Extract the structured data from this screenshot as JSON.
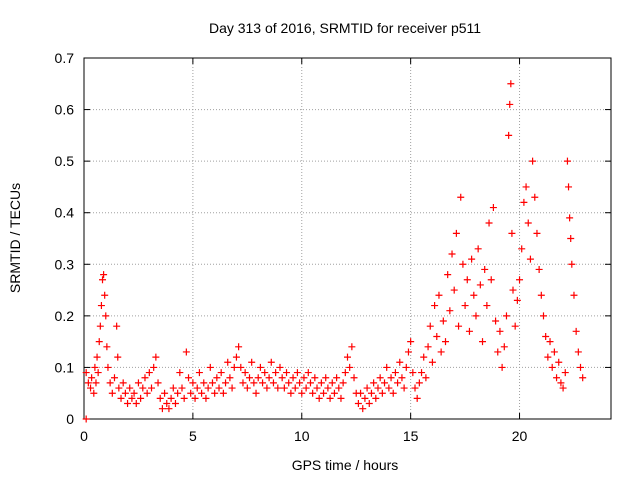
{
  "chart_data": {
    "type": "scatter",
    "title": "Day 313 of 2016, SRMTID for receiver p511",
    "xlabel": "GPS time / hours",
    "ylabel": "SRMTID / TECUs",
    "xlim": [
      0,
      24.2
    ],
    "ylim": [
      0,
      0.7
    ],
    "xticks": [
      0,
      5,
      10,
      15,
      20
    ],
    "xtick_labels": [
      "0",
      "5",
      "10",
      "15",
      "20"
    ],
    "yticks": [
      0,
      0.1,
      0.2,
      0.3,
      0.4,
      0.5,
      0.6,
      0.7
    ],
    "ytick_labels": [
      "0",
      "0.1",
      "0.2",
      "0.3",
      "0.4",
      "0.5",
      "0.6",
      "0.7"
    ],
    "grid": true,
    "marker": "+",
    "series": [
      {
        "name": "p511",
        "color": "#ff0000",
        "points": [
          [
            0.1,
            0.0
          ],
          [
            0.1,
            0.09
          ],
          [
            0.2,
            0.07
          ],
          [
            0.3,
            0.06
          ],
          [
            0.35,
            0.08
          ],
          [
            0.45,
            0.05
          ],
          [
            0.5,
            0.1
          ],
          [
            0.55,
            0.07
          ],
          [
            0.6,
            0.12
          ],
          [
            0.65,
            0.09
          ],
          [
            0.7,
            0.15
          ],
          [
            0.75,
            0.18
          ],
          [
            0.8,
            0.22
          ],
          [
            0.85,
            0.27
          ],
          [
            0.9,
            0.28
          ],
          [
            0.95,
            0.24
          ],
          [
            1.0,
            0.2
          ],
          [
            1.05,
            0.14
          ],
          [
            1.1,
            0.1
          ],
          [
            1.2,
            0.07
          ],
          [
            1.3,
            0.05
          ],
          [
            1.4,
            0.08
          ],
          [
            1.5,
            0.18
          ],
          [
            1.55,
            0.12
          ],
          [
            1.6,
            0.06
          ],
          [
            1.7,
            0.04
          ],
          [
            1.8,
            0.07
          ],
          [
            1.9,
            0.05
          ],
          [
            2.0,
            0.03
          ],
          [
            2.1,
            0.06
          ],
          [
            2.2,
            0.04
          ],
          [
            2.3,
            0.05
          ],
          [
            2.4,
            0.03
          ],
          [
            2.5,
            0.07
          ],
          [
            2.6,
            0.04
          ],
          [
            2.7,
            0.06
          ],
          [
            2.8,
            0.08
          ],
          [
            2.9,
            0.05
          ],
          [
            3.0,
            0.09
          ],
          [
            3.1,
            0.06
          ],
          [
            3.2,
            0.1
          ],
          [
            3.3,
            0.12
          ],
          [
            3.4,
            0.07
          ],
          [
            3.5,
            0.04
          ],
          [
            3.6,
            0.02
          ],
          [
            3.7,
            0.05
          ],
          [
            3.8,
            0.03
          ],
          [
            3.9,
            0.02
          ],
          [
            4.0,
            0.04
          ],
          [
            4.1,
            0.06
          ],
          [
            4.2,
            0.03
          ],
          [
            4.3,
            0.05
          ],
          [
            4.4,
            0.09
          ],
          [
            4.5,
            0.06
          ],
          [
            4.6,
            0.04
          ],
          [
            4.7,
            0.13
          ],
          [
            4.8,
            0.08
          ],
          [
            4.9,
            0.05
          ],
          [
            5.0,
            0.07
          ],
          [
            5.1,
            0.04
          ],
          [
            5.2,
            0.06
          ],
          [
            5.3,
            0.09
          ],
          [
            5.4,
            0.05
          ],
          [
            5.5,
            0.07
          ],
          [
            5.6,
            0.04
          ],
          [
            5.7,
            0.06
          ],
          [
            5.8,
            0.1
          ],
          [
            5.9,
            0.07
          ],
          [
            6.0,
            0.05
          ],
          [
            6.1,
            0.08
          ],
          [
            6.2,
            0.06
          ],
          [
            6.3,
            0.09
          ],
          [
            6.4,
            0.05
          ],
          [
            6.5,
            0.07
          ],
          [
            6.6,
            0.11
          ],
          [
            6.7,
            0.08
          ],
          [
            6.8,
            0.06
          ],
          [
            6.9,
            0.1
          ],
          [
            7.0,
            0.12
          ],
          [
            7.1,
            0.14
          ],
          [
            7.2,
            0.1
          ],
          [
            7.3,
            0.07
          ],
          [
            7.4,
            0.09
          ],
          [
            7.5,
            0.06
          ],
          [
            7.6,
            0.08
          ],
          [
            7.7,
            0.11
          ],
          [
            7.8,
            0.07
          ],
          [
            7.9,
            0.05
          ],
          [
            8.0,
            0.08
          ],
          [
            8.1,
            0.1
          ],
          [
            8.2,
            0.07
          ],
          [
            8.3,
            0.09
          ],
          [
            8.4,
            0.06
          ],
          [
            8.5,
            0.08
          ],
          [
            8.6,
            0.11
          ],
          [
            8.7,
            0.07
          ],
          [
            8.8,
            0.09
          ],
          [
            8.9,
            0.06
          ],
          [
            9.0,
            0.1
          ],
          [
            9.1,
            0.08
          ],
          [
            9.2,
            0.06
          ],
          [
            9.3,
            0.09
          ],
          [
            9.4,
            0.07
          ],
          [
            9.5,
            0.05
          ],
          [
            9.6,
            0.08
          ],
          [
            9.7,
            0.06
          ],
          [
            9.8,
            0.09
          ],
          [
            9.9,
            0.07
          ],
          [
            10.0,
            0.05
          ],
          [
            10.1,
            0.08
          ],
          [
            10.2,
            0.06
          ],
          [
            10.3,
            0.09
          ],
          [
            10.4,
            0.07
          ],
          [
            10.5,
            0.05
          ],
          [
            10.6,
            0.08
          ],
          [
            10.7,
            0.06
          ],
          [
            10.8,
            0.04
          ],
          [
            10.9,
            0.07
          ],
          [
            11.0,
            0.05
          ],
          [
            11.1,
            0.08
          ],
          [
            11.2,
            0.06
          ],
          [
            11.3,
            0.04
          ],
          [
            11.4,
            0.07
          ],
          [
            11.5,
            0.05
          ],
          [
            11.6,
            0.08
          ],
          [
            11.7,
            0.06
          ],
          [
            11.8,
            0.04
          ],
          [
            11.9,
            0.07
          ],
          [
            12.0,
            0.09
          ],
          [
            12.1,
            0.12
          ],
          [
            12.2,
            0.1
          ],
          [
            12.3,
            0.14
          ],
          [
            12.4,
            0.08
          ],
          [
            12.5,
            0.05
          ],
          [
            12.6,
            0.03
          ],
          [
            12.7,
            0.05
          ],
          [
            12.8,
            0.02
          ],
          [
            12.9,
            0.04
          ],
          [
            13.0,
            0.06
          ],
          [
            13.1,
            0.03
          ],
          [
            13.2,
            0.05
          ],
          [
            13.3,
            0.07
          ],
          [
            13.4,
            0.04
          ],
          [
            13.5,
            0.06
          ],
          [
            13.6,
            0.08
          ],
          [
            13.7,
            0.05
          ],
          [
            13.8,
            0.07
          ],
          [
            13.9,
            0.1
          ],
          [
            14.0,
            0.06
          ],
          [
            14.1,
            0.08
          ],
          [
            14.2,
            0.05
          ],
          [
            14.3,
            0.09
          ],
          [
            14.4,
            0.07
          ],
          [
            14.5,
            0.11
          ],
          [
            14.6,
            0.08
          ],
          [
            14.7,
            0.06
          ],
          [
            14.8,
            0.1
          ],
          [
            14.9,
            0.13
          ],
          [
            15.0,
            0.15
          ],
          [
            15.1,
            0.09
          ],
          [
            15.2,
            0.06
          ],
          [
            15.3,
            0.04
          ],
          [
            15.4,
            0.07
          ],
          [
            15.5,
            0.09
          ],
          [
            15.6,
            0.12
          ],
          [
            15.7,
            0.08
          ],
          [
            15.8,
            0.14
          ],
          [
            15.9,
            0.18
          ],
          [
            16.0,
            0.11
          ],
          [
            16.1,
            0.22
          ],
          [
            16.2,
            0.16
          ],
          [
            16.3,
            0.24
          ],
          [
            16.4,
            0.13
          ],
          [
            16.5,
            0.19
          ],
          [
            16.6,
            0.15
          ],
          [
            16.7,
            0.28
          ],
          [
            16.8,
            0.21
          ],
          [
            16.9,
            0.32
          ],
          [
            17.0,
            0.25
          ],
          [
            17.1,
            0.36
          ],
          [
            17.2,
            0.18
          ],
          [
            17.3,
            0.43
          ],
          [
            17.4,
            0.3
          ],
          [
            17.5,
            0.22
          ],
          [
            17.6,
            0.27
          ],
          [
            17.7,
            0.17
          ],
          [
            17.8,
            0.31
          ],
          [
            17.9,
            0.24
          ],
          [
            18.0,
            0.2
          ],
          [
            18.1,
            0.33
          ],
          [
            18.2,
            0.26
          ],
          [
            18.3,
            0.15
          ],
          [
            18.4,
            0.29
          ],
          [
            18.5,
            0.22
          ],
          [
            18.6,
            0.38
          ],
          [
            18.7,
            0.27
          ],
          [
            18.8,
            0.41
          ],
          [
            18.9,
            0.19
          ],
          [
            19.0,
            0.13
          ],
          [
            19.1,
            0.17
          ],
          [
            19.2,
            0.1
          ],
          [
            19.3,
            0.14
          ],
          [
            19.4,
            0.2
          ],
          [
            19.5,
            0.55
          ],
          [
            19.55,
            0.61
          ],
          [
            19.6,
            0.65
          ],
          [
            19.65,
            0.36
          ],
          [
            19.7,
            0.25
          ],
          [
            19.8,
            0.18
          ],
          [
            19.9,
            0.23
          ],
          [
            20.0,
            0.27
          ],
          [
            20.1,
            0.33
          ],
          [
            20.2,
            0.42
          ],
          [
            20.3,
            0.45
          ],
          [
            20.4,
            0.38
          ],
          [
            20.5,
            0.31
          ],
          [
            20.6,
            0.5
          ],
          [
            20.7,
            0.43
          ],
          [
            20.8,
            0.36
          ],
          [
            20.9,
            0.29
          ],
          [
            21.0,
            0.24
          ],
          [
            21.1,
            0.2
          ],
          [
            21.2,
            0.16
          ],
          [
            21.3,
            0.12
          ],
          [
            21.4,
            0.15
          ],
          [
            21.5,
            0.1
          ],
          [
            21.6,
            0.13
          ],
          [
            21.7,
            0.08
          ],
          [
            21.8,
            0.11
          ],
          [
            21.9,
            0.07
          ],
          [
            22.0,
            0.06
          ],
          [
            22.1,
            0.09
          ],
          [
            22.2,
            0.5
          ],
          [
            22.25,
            0.45
          ],
          [
            22.3,
            0.39
          ],
          [
            22.35,
            0.35
          ],
          [
            22.4,
            0.3
          ],
          [
            22.5,
            0.24
          ],
          [
            22.6,
            0.17
          ],
          [
            22.7,
            0.13
          ],
          [
            22.8,
            0.1
          ],
          [
            22.9,
            0.08
          ]
        ]
      }
    ]
  }
}
